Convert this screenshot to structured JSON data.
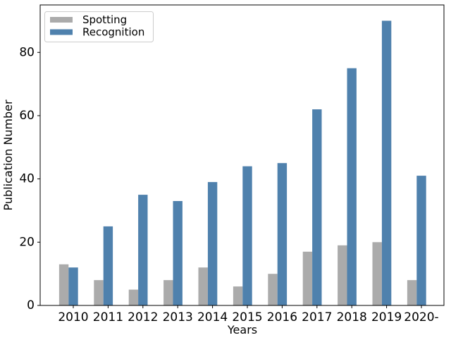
{
  "chart_data": {
    "type": "bar",
    "title": "",
    "xlabel": "Years",
    "ylabel": "Publication Number",
    "categories": [
      "2010",
      "2011",
      "2012",
      "2013",
      "2014",
      "2015",
      "2016",
      "2017",
      "2018",
      "2019",
      "2020-"
    ],
    "series": [
      {
        "name": "Spotting",
        "color": "#ababab",
        "values": [
          13,
          8,
          5,
          8,
          12,
          6,
          10,
          17,
          19,
          20,
          8
        ]
      },
      {
        "name": "Recognition",
        "color": "#4f81ad",
        "values": [
          12,
          25,
          35,
          33,
          39,
          44,
          45,
          62,
          75,
          90,
          41
        ]
      }
    ],
    "ylim": [
      0,
      95
    ],
    "yticks": [
      0,
      20,
      40,
      60,
      80
    ],
    "grid": false,
    "legend": {
      "position": "upper left",
      "labels": [
        "Spotting",
        "Recognition"
      ],
      "border_color": "#cccccc",
      "background": "#ffffff"
    },
    "axis_color": "#000000",
    "background": "#ffffff"
  }
}
